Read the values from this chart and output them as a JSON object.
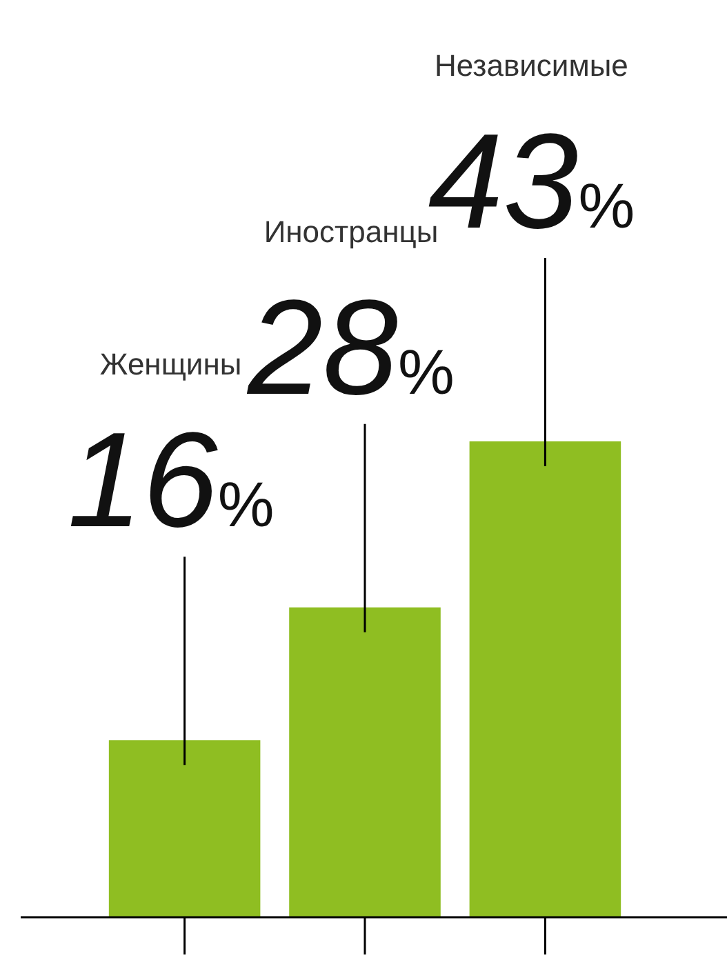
{
  "chart_data": {
    "type": "bar",
    "categories": [
      null,
      null,
      null
    ],
    "values": [
      16,
      28,
      43
    ],
    "color": "#8fbe22",
    "value_labels": [
      "16%",
      "28%",
      "43%"
    ],
    "annotations": [
      "Женщины",
      "Иностранцы",
      "Независимые"
    ]
  }
}
